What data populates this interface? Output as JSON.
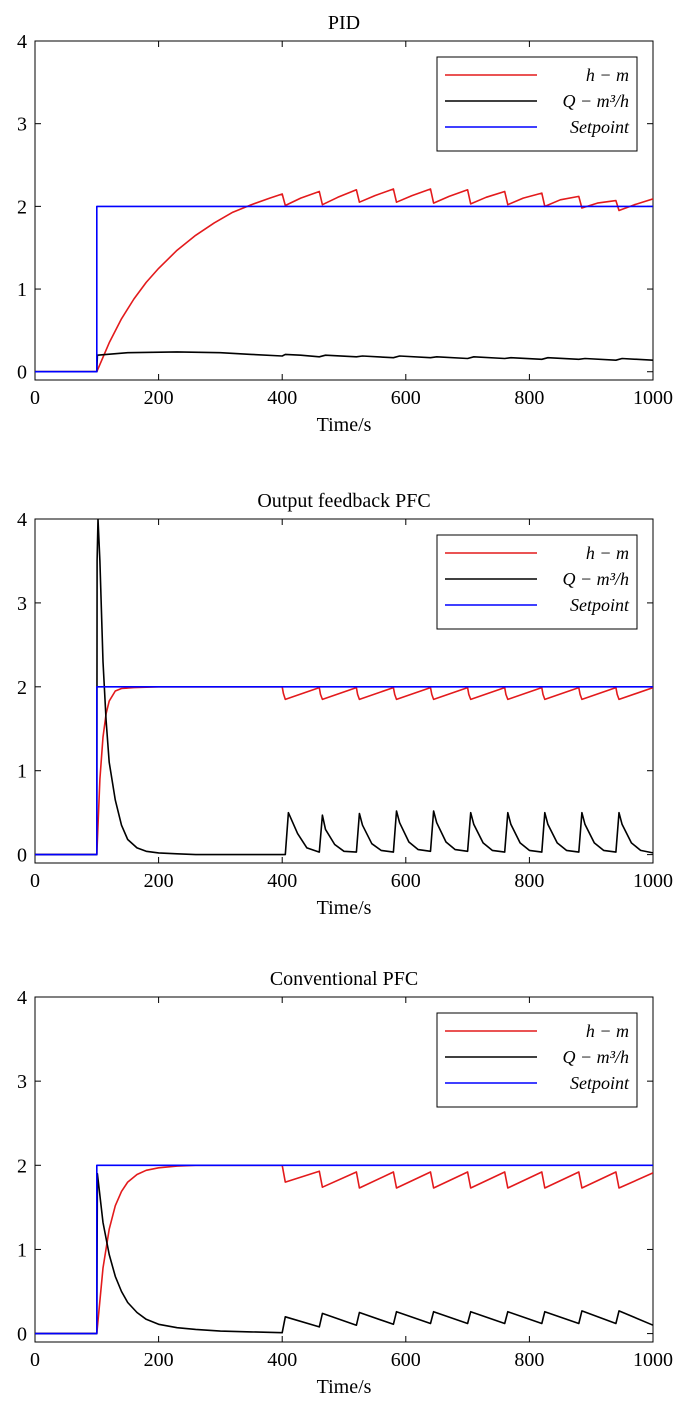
{
  "chart_data": [
    {
      "type": "line",
      "title": "PID",
      "xlabel": "Time/s",
      "ylabel": "",
      "xlim": [
        0,
        1000
      ],
      "ylim": [
        -0.1,
        4
      ],
      "xticks": [
        "0",
        "200",
        "400",
        "600",
        "800",
        "1000"
      ],
      "yticks": [
        "0",
        "1",
        "2",
        "3",
        "4"
      ],
      "legend_position": "top-right",
      "series": [
        {
          "name": "h − m",
          "color": "#e31a1c",
          "x": [
            0,
            100,
            120,
            140,
            160,
            180,
            200,
            230,
            260,
            290,
            320,
            350,
            380,
            400,
            405,
            430,
            460,
            465,
            490,
            520,
            525,
            550,
            580,
            585,
            610,
            640,
            645,
            670,
            700,
            705,
            730,
            760,
            765,
            790,
            820,
            825,
            850,
            880,
            885,
            910,
            940,
            945,
            970,
            1000
          ],
          "y": [
            0,
            0,
            0.35,
            0.64,
            0.88,
            1.08,
            1.25,
            1.47,
            1.65,
            1.8,
            1.93,
            2.02,
            2.1,
            2.15,
            2.01,
            2.1,
            2.18,
            2.02,
            2.11,
            2.2,
            2.05,
            2.13,
            2.21,
            2.05,
            2.13,
            2.21,
            2.04,
            2.12,
            2.2,
            2.03,
            2.11,
            2.18,
            2.02,
            2.1,
            2.16,
            2.0,
            2.08,
            2.12,
            1.98,
            2.04,
            2.07,
            1.95,
            2.02,
            2.09
          ]
        },
        {
          "name": "Q − m³/h",
          "color": "#000000",
          "x": [
            0,
            100,
            101,
            150,
            230,
            300,
            350,
            400,
            405,
            430,
            460,
            470,
            520,
            530,
            580,
            590,
            640,
            650,
            700,
            710,
            760,
            770,
            820,
            830,
            880,
            890,
            940,
            950,
            1000
          ],
          "y": [
            0,
            0,
            0.2,
            0.23,
            0.24,
            0.23,
            0.21,
            0.19,
            0.21,
            0.2,
            0.18,
            0.2,
            0.18,
            0.19,
            0.17,
            0.19,
            0.17,
            0.18,
            0.16,
            0.18,
            0.16,
            0.17,
            0.15,
            0.17,
            0.15,
            0.16,
            0.14,
            0.16,
            0.14
          ]
        },
        {
          "name": "Setpoint",
          "color": "#0000ff",
          "x": [
            0,
            100,
            100,
            1000
          ],
          "y": [
            0,
            0,
            2,
            2
          ]
        }
      ]
    },
    {
      "type": "line",
      "title": "Output feedback PFC",
      "xlabel": "Time/s",
      "ylabel": "",
      "xlim": [
        0,
        1000
      ],
      "ylim": [
        -0.1,
        4
      ],
      "xticks": [
        "0",
        "200",
        "400",
        "600",
        "800",
        "1000"
      ],
      "yticks": [
        "0",
        "1",
        "2",
        "3",
        "4"
      ],
      "legend_position": "top-right",
      "series": [
        {
          "name": "h − m",
          "color": "#e31a1c",
          "x": [
            0,
            100,
            105,
            110,
            115,
            120,
            130,
            140,
            160,
            200,
            300,
            400,
            402,
            405,
            460,
            462,
            465,
            520,
            522,
            525,
            580,
            582,
            585,
            640,
            642,
            645,
            700,
            702,
            705,
            760,
            762,
            765,
            820,
            822,
            825,
            880,
            882,
            885,
            940,
            942,
            945,
            1000
          ],
          "y": [
            0,
            0,
            0.9,
            1.4,
            1.68,
            1.83,
            1.95,
            1.98,
            1.99,
            2.0,
            2.0,
            2.0,
            1.92,
            1.85,
            1.99,
            1.91,
            1.85,
            1.99,
            1.91,
            1.85,
            1.99,
            1.91,
            1.85,
            1.99,
            1.91,
            1.85,
            1.99,
            1.91,
            1.85,
            1.99,
            1.91,
            1.85,
            1.99,
            1.91,
            1.85,
            1.99,
            1.91,
            1.85,
            1.99,
            1.91,
            1.85,
            1.99
          ]
        },
        {
          "name": "Q − m³/h",
          "color": "#000000",
          "x": [
            0,
            100,
            100.5,
            102,
            105,
            110,
            115,
            120,
            130,
            140,
            150,
            165,
            180,
            200,
            230,
            260,
            300,
            350,
            395,
            400,
            405,
            410,
            425,
            440,
            460,
            465,
            470,
            485,
            500,
            520,
            525,
            530,
            545,
            560,
            580,
            585,
            590,
            605,
            620,
            640,
            645,
            650,
            665,
            680,
            700,
            705,
            710,
            725,
            740,
            760,
            765,
            770,
            785,
            800,
            820,
            825,
            830,
            845,
            860,
            880,
            885,
            890,
            905,
            920,
            940,
            945,
            950,
            965,
            980,
            1000
          ],
          "y": [
            0,
            0,
            3.5,
            4.0,
            3.5,
            2.3,
            1.6,
            1.1,
            0.65,
            0.35,
            0.18,
            0.08,
            0.04,
            0.02,
            0.01,
            0.0,
            0.0,
            0.0,
            0.0,
            0.0,
            0.0,
            0.5,
            0.25,
            0.08,
            0.03,
            0.47,
            0.3,
            0.12,
            0.04,
            0.03,
            0.49,
            0.35,
            0.13,
            0.05,
            0.03,
            0.52,
            0.38,
            0.15,
            0.06,
            0.04,
            0.52,
            0.38,
            0.15,
            0.06,
            0.04,
            0.5,
            0.36,
            0.14,
            0.05,
            0.03,
            0.5,
            0.36,
            0.14,
            0.05,
            0.03,
            0.5,
            0.36,
            0.14,
            0.05,
            0.03,
            0.5,
            0.36,
            0.14,
            0.05,
            0.03,
            0.5,
            0.36,
            0.14,
            0.05,
            0.02
          ]
        },
        {
          "name": "Setpoint",
          "color": "#0000ff",
          "x": [
            0,
            100,
            100,
            1000
          ],
          "y": [
            0,
            0,
            2,
            2
          ]
        }
      ]
    },
    {
      "type": "line",
      "title": "Conventional PFC",
      "xlabel": "Time/s",
      "ylabel": "",
      "xlim": [
        0,
        1000
      ],
      "ylim": [
        -0.1,
        4
      ],
      "xticks": [
        "0",
        "200",
        "400",
        "600",
        "800",
        "1000"
      ],
      "yticks": [
        "0",
        "1",
        "2",
        "3",
        "4"
      ],
      "legend_position": "top-right",
      "series": [
        {
          "name": "h − m",
          "color": "#e31a1c",
          "x": [
            0,
            100,
            110,
            120,
            130,
            140,
            150,
            165,
            180,
            200,
            230,
            260,
            300,
            350,
            400,
            405,
            460,
            465,
            520,
            525,
            580,
            585,
            640,
            645,
            700,
            705,
            760,
            765,
            820,
            825,
            880,
            885,
            940,
            945,
            1000
          ],
          "y": [
            0,
            0,
            0.78,
            1.24,
            1.52,
            1.69,
            1.8,
            1.89,
            1.94,
            1.97,
            1.99,
            2.0,
            2.0,
            2.0,
            2.0,
            1.8,
            1.93,
            1.74,
            1.92,
            1.73,
            1.92,
            1.73,
            1.92,
            1.73,
            1.92,
            1.73,
            1.92,
            1.73,
            1.92,
            1.73,
            1.92,
            1.73,
            1.92,
            1.73,
            1.91
          ]
        },
        {
          "name": "Q − m³/h",
          "color": "#000000",
          "x": [
            0,
            100,
            101,
            110,
            120,
            130,
            140,
            150,
            165,
            180,
            200,
            230,
            260,
            300,
            350,
            400,
            405,
            460,
            465,
            520,
            525,
            580,
            585,
            640,
            645,
            700,
            705,
            760,
            765,
            820,
            825,
            880,
            885,
            940,
            945,
            1000
          ],
          "y": [
            0,
            0,
            1.9,
            1.32,
            0.94,
            0.68,
            0.5,
            0.37,
            0.25,
            0.17,
            0.11,
            0.07,
            0.05,
            0.03,
            0.02,
            0.01,
            0.2,
            0.08,
            0.24,
            0.1,
            0.25,
            0.11,
            0.26,
            0.12,
            0.26,
            0.12,
            0.26,
            0.12,
            0.26,
            0.12,
            0.26,
            0.12,
            0.27,
            0.12,
            0.27,
            0.1
          ]
        },
        {
          "name": "Setpoint",
          "color": "#0000ff",
          "x": [
            0,
            100,
            100,
            1000
          ],
          "y": [
            0,
            0,
            2,
            2
          ]
        }
      ]
    }
  ]
}
